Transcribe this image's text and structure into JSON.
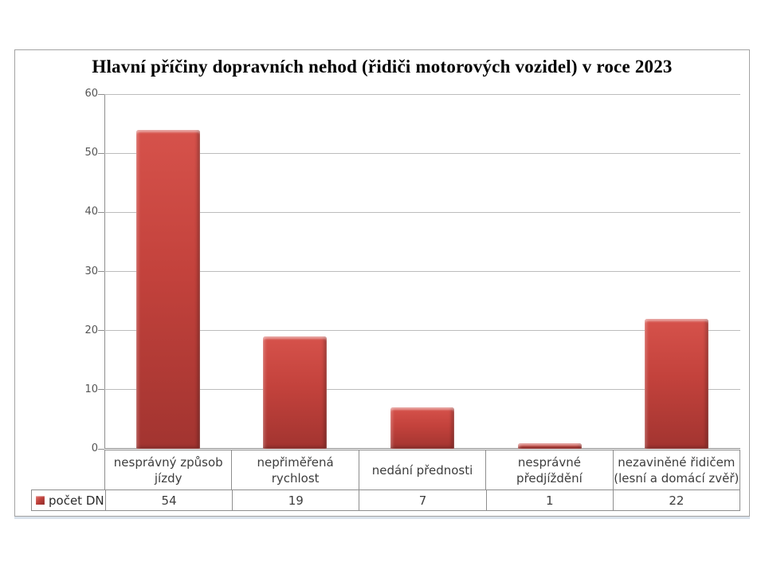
{
  "page": {
    "background": "#ffffff"
  },
  "chart_data": {
    "type": "bar",
    "title": "Hlavní příčiny dopravních nehod (řidiči motorových vozidel) v roce 2023",
    "categories": [
      "nesprávný způsob jízdy",
      "nepřiměřená rychlost",
      "nedání přednosti",
      "nesprávné předjíždění",
      "nezaviněné řidičem (lesní a domácí zvěř)"
    ],
    "category_label_lines": [
      [
        "nesprávný způsob",
        "jízdy"
      ],
      [
        "nepřiměřená",
        "rychlost"
      ],
      [
        "nedání přednosti"
      ],
      [
        "nesprávné",
        "předjíždění"
      ],
      [
        "nezaviněné řidičem",
        "(lesní a domácí zvěř)"
      ]
    ],
    "series": [
      {
        "name": "počet DN",
        "values": [
          54,
          19,
          7,
          1,
          22
        ]
      }
    ],
    "xlabel": "",
    "ylabel": "",
    "ylim": [
      0,
      60
    ],
    "yticks": [
      0,
      10,
      20,
      30,
      40,
      50,
      60
    ],
    "grid": true,
    "legend_position": "table-left",
    "bar_color": "#c0423c",
    "bar_gradient_top": "#d6524b",
    "bar_gradient_bottom": "#a23430",
    "gridline_color": "#bcbcbc",
    "axis_color": "#8e8e8e",
    "tick_label_color": "#555555",
    "table_text_color": "#3d3d3d"
  }
}
